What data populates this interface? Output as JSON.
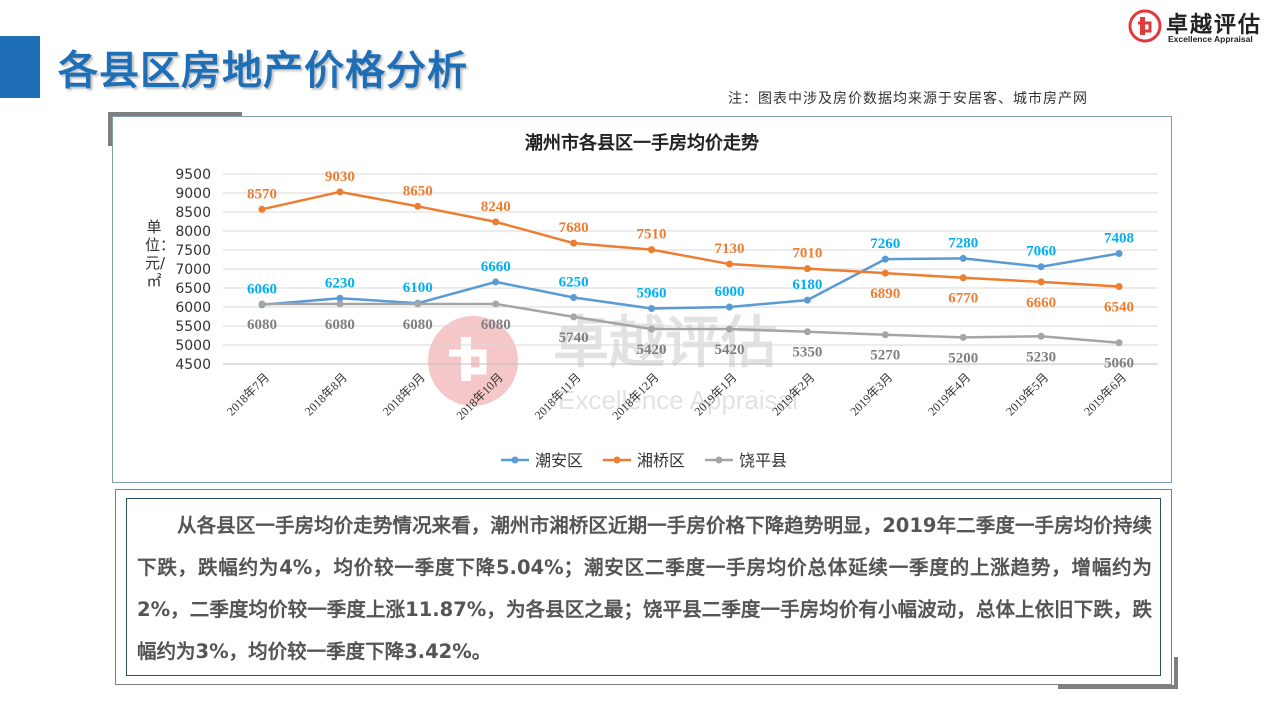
{
  "page": {
    "title": "各县区房地产价格分析",
    "note": "注：图表中涉及房价数据均来源于安居客、城市房产网"
  },
  "logo": {
    "name": "卓越评估",
    "sub": "Excellence Appraisal"
  },
  "watermark": {
    "name": "卓越评估",
    "sub": "Excellence Appraisal"
  },
  "colors": {
    "accent": "#1f6fb7",
    "series_chaoan": "#5b9bd5",
    "series_xiangqiao": "#ed7d31",
    "series_raoping": "#a5a5a5",
    "label_chaoan": "#00b0f0",
    "label_xiangqiao": "#ed7d31",
    "label_raoping": "#7f7f7f",
    "logo_red": "#e03a3e"
  },
  "chart_data": {
    "type": "line",
    "title": "潮州市各县区一手房均价走势",
    "ylabel": "单位：元/㎡",
    "xlabel": "",
    "ylim": [
      4500,
      9500
    ],
    "yticks": [
      4500,
      5000,
      5500,
      6000,
      6500,
      7000,
      7500,
      8000,
      8500,
      9000,
      9500
    ],
    "grid": true,
    "legend_position": "bottom",
    "categories": [
      "2018年7月",
      "2018年8月",
      "2018年9月",
      "2018年10月",
      "2018年11月",
      "2018年12月",
      "2019年1月",
      "2019年2月",
      "2019年3月",
      "2019年4月",
      "2019年5月",
      "2019年6月"
    ],
    "series": [
      {
        "name": "潮安区",
        "values": [
          6060,
          6230,
          6100,
          6660,
          6250,
          5960,
          6000,
          6180,
          7260,
          7280,
          7060,
          7408
        ]
      },
      {
        "name": "湘桥区",
        "values": [
          8570,
          9030,
          8650,
          8240,
          7680,
          7510,
          7130,
          7010,
          6890,
          6770,
          6660,
          6540
        ]
      },
      {
        "name": "饶平县",
        "values": [
          6080,
          6080,
          6080,
          6080,
          5740,
          5420,
          5420,
          5350,
          5270,
          5200,
          5230,
          5060
        ]
      }
    ]
  },
  "summary": {
    "paragraph": "从各县区一手房均价走势情况来看，潮州市湘桥区近期一手房价格下降趋势明显，2019年二季度一手房均价持续下跌，跌幅约为4%，均价较一季度下降5.04%；潮安区二季度一手房均价总体延续一季度的上涨趋势，增幅约为2%，二季度均价较一季度上涨11.87%，为各县区之最；饶平县二季度一手房均价有小幅波动，总体上依旧下跌，跌幅约为3%，均价较一季度下降3.42%。"
  }
}
